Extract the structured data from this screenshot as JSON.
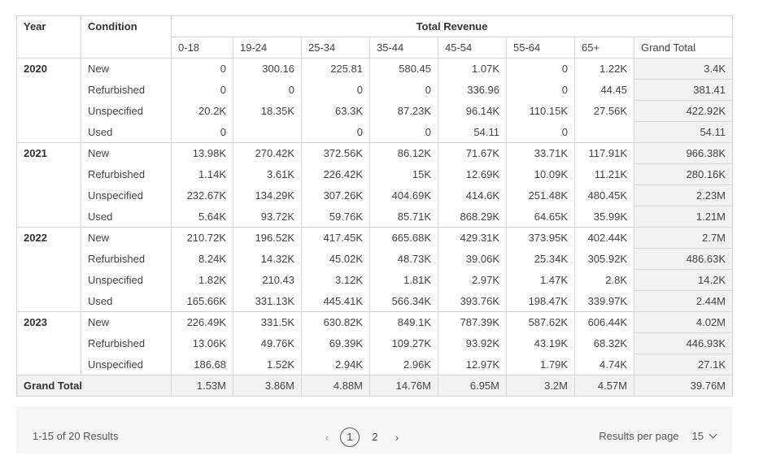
{
  "header": {
    "year": "Year",
    "condition": "Condition",
    "total_revenue": "Total Revenue",
    "age_groups": [
      "0-18",
      "19-24",
      "25-34",
      "35-44",
      "45-54",
      "55-64",
      "65+"
    ],
    "grand_total": "Grand Total"
  },
  "groups": [
    {
      "year": "2020",
      "rows": [
        {
          "condition": "New",
          "values": [
            "0",
            "300.16",
            "225.81",
            "580.45",
            "1.07K",
            "0",
            "1.22K"
          ],
          "total": "3.4K"
        },
        {
          "condition": "Refurbished",
          "values": [
            "0",
            "0",
            "0",
            "0",
            "336.96",
            "0",
            "44.45"
          ],
          "total": "381.41"
        },
        {
          "condition": "Unspecified",
          "values": [
            "20.2K",
            "18.35K",
            "63.3K",
            "87.23K",
            "96.14K",
            "110.15K",
            "27.56K"
          ],
          "total": "422.92K"
        },
        {
          "condition": "Used",
          "values": [
            "0",
            "",
            "0",
            "0",
            "54.11",
            "0",
            ""
          ],
          "total": "54.11"
        }
      ]
    },
    {
      "year": "2021",
      "rows": [
        {
          "condition": "New",
          "values": [
            "13.98K",
            "270.42K",
            "372.56K",
            "86.12K",
            "71.67K",
            "33.71K",
            "117.91K"
          ],
          "total": "966.38K"
        },
        {
          "condition": "Refurbished",
          "values": [
            "1.14K",
            "3.61K",
            "226.42K",
            "15K",
            "12.69K",
            "10.09K",
            "11.21K"
          ],
          "total": "280.16K"
        },
        {
          "condition": "Unspecified",
          "values": [
            "232.67K",
            "134.29K",
            "307.26K",
            "404.69K",
            "414.6K",
            "251.48K",
            "480.45K"
          ],
          "total": "2.23M"
        },
        {
          "condition": "Used",
          "values": [
            "5.64K",
            "93.72K",
            "59.76K",
            "85.71K",
            "868.29K",
            "64.65K",
            "35.99K"
          ],
          "total": "1.21M"
        }
      ]
    },
    {
      "year": "2022",
      "rows": [
        {
          "condition": "New",
          "values": [
            "210.72K",
            "196.52K",
            "417.45K",
            "665.68K",
            "429.31K",
            "373.95K",
            "402.44K"
          ],
          "total": "2.7M"
        },
        {
          "condition": "Refurbished",
          "values": [
            "8.24K",
            "14.32K",
            "45.02K",
            "48.73K",
            "39.06K",
            "25.34K",
            "305.92K"
          ],
          "total": "486.63K"
        },
        {
          "condition": "Unspecified",
          "values": [
            "1.82K",
            "210.43",
            "3.12K",
            "1.81K",
            "2.97K",
            "1.47K",
            "2.8K"
          ],
          "total": "14.2K"
        },
        {
          "condition": "Used",
          "values": [
            "165.66K",
            "331.13K",
            "445.41K",
            "566.34K",
            "393.76K",
            "198.47K",
            "339.97K"
          ],
          "total": "2.44M"
        }
      ]
    },
    {
      "year": "2023",
      "rows": [
        {
          "condition": "New",
          "values": [
            "226.49K",
            "331.5K",
            "630.82K",
            "849.1K",
            "787.39K",
            "587.62K",
            "606.44K"
          ],
          "total": "4.02M"
        },
        {
          "condition": "Refurbished",
          "values": [
            "13.06K",
            "49.76K",
            "69.39K",
            "109.27K",
            "93.92K",
            "43.19K",
            "68.32K"
          ],
          "total": "446.93K"
        },
        {
          "condition": "Unspecified",
          "values": [
            "186.68",
            "1.52K",
            "2.94K",
            "2.96K",
            "12.97K",
            "1.79K",
            "4.74K"
          ],
          "total": "27.1K"
        }
      ]
    }
  ],
  "grand_total_row": {
    "label": "Grand Total",
    "values": [
      "1.53M",
      "3.86M",
      "4.88M",
      "14.76M",
      "6.95M",
      "3.2M",
      "4.57M"
    ],
    "total": "39.76M"
  },
  "footer": {
    "summary": "1-15 of 20 Results",
    "pages": [
      "1",
      "2"
    ],
    "current_page": "1",
    "prev_icon": "chevron-left-icon",
    "next_icon": "chevron-right-icon",
    "results_per_page_label": "Results per page",
    "results_per_page_value": "15"
  }
}
